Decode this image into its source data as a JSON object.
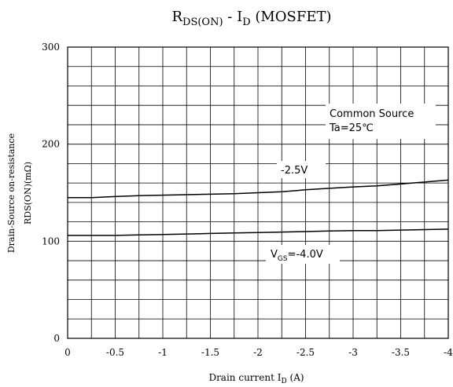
{
  "chart_data": {
    "type": "line",
    "title": {
      "r": "R",
      "r_sub": "DS(ON)",
      "dash": " - ",
      "i": "I",
      "i_sub": "D",
      "tail": " (MOSFET)"
    },
    "xlabel": {
      "main": "Drain current I",
      "sub": "D",
      "tail": " (A)"
    },
    "ylabel": {
      "line1": "Drain-Source on-resistance",
      "line2": "RDS(ON)(mΩ)"
    },
    "xlim": [
      0,
      -4
    ],
    "ylim": [
      0,
      300
    ],
    "x_ticks": [
      0,
      -0.5,
      -1,
      -1.5,
      -2,
      -2.5,
      -3,
      -3.5,
      -4
    ],
    "x_tick_labels": [
      "0",
      "-0.5",
      "-1",
      "-1.5",
      "-2",
      "-2.5",
      "-3",
      "-3.5",
      "-4"
    ],
    "y_ticks": [
      0,
      100,
      200,
      300
    ],
    "y_tick_labels": [
      "0",
      "100",
      "200",
      "300"
    ],
    "grid": true,
    "annotation": {
      "line1": "Common Source",
      "line2": "Ta=25℃"
    },
    "series": [
      {
        "name": "-2.5V",
        "x": [
          0,
          -0.25,
          -0.5,
          -0.75,
          -1,
          -1.25,
          -1.5,
          -1.75,
          -2,
          -2.25,
          -2.5,
          -2.75,
          -3,
          -3.25,
          -3.5,
          -3.75,
          -4
        ],
        "values": [
          145,
          145,
          146,
          147,
          147.5,
          148,
          148.5,
          149,
          150,
          151,
          153,
          154.5,
          156,
          157,
          159,
          161,
          163
        ]
      },
      {
        "name": "-4.0V",
        "x": [
          0,
          -0.25,
          -0.5,
          -0.75,
          -1,
          -1.25,
          -1.5,
          -1.75,
          -2,
          -2.25,
          -2.5,
          -2.75,
          -3,
          -3.25,
          -3.5,
          -3.75,
          -4
        ],
        "values": [
          106,
          106,
          106,
          106.5,
          107,
          107.5,
          108,
          108.5,
          109,
          109.5,
          110,
          110.5,
          111,
          111,
          111.5,
          112,
          112.5
        ]
      }
    ],
    "series_labels": {
      "a": "-2.5V",
      "b_prefix": "V",
      "b_sub": "GS",
      "b_rest": "=-4.0V"
    },
    "colors": {
      "line": "#000000",
      "grid": "#000000",
      "background": "#ffffff"
    }
  }
}
